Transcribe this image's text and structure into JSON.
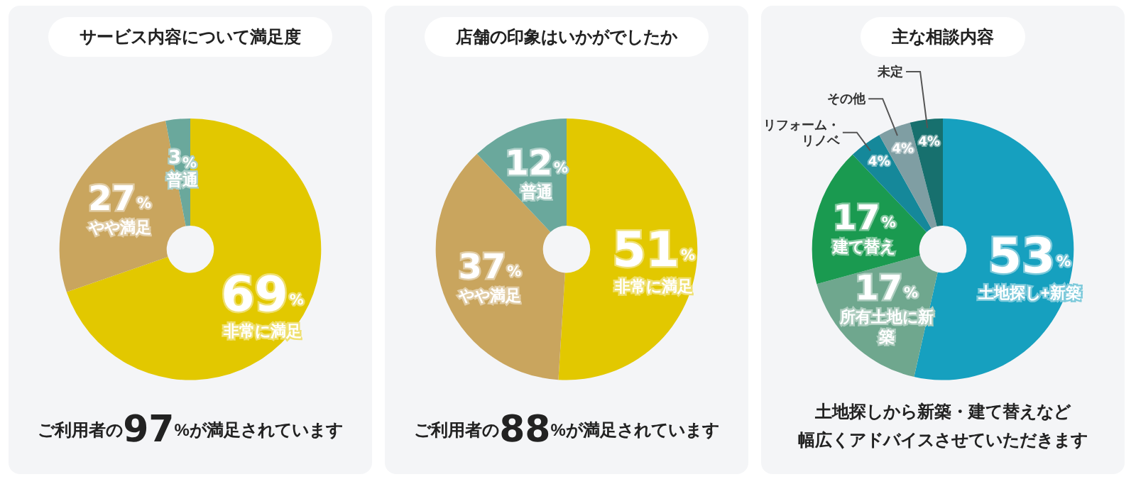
{
  "chart_data": [
    {
      "type": "donut",
      "title": "サービス内容について満足度",
      "categories": [
        "非常に満足",
        "やや満足",
        "普通"
      ],
      "values": [
        69,
        27,
        3
      ],
      "value_labels": [
        "69%",
        "27%",
        "3%"
      ],
      "colors": [
        "#e2c800",
        "#c9a55e",
        "#6aa89c"
      ],
      "legend": false,
      "annotations": [
        "ご利用者の97%が満足されています"
      ]
    },
    {
      "type": "donut",
      "title": "店舗の印象はいかがでしたか",
      "categories": [
        "非常に満足",
        "やや満足",
        "普通"
      ],
      "values": [
        51,
        37,
        12
      ],
      "value_labels": [
        "51%",
        "37%",
        "12%"
      ],
      "colors": [
        "#e2c800",
        "#c9a55e",
        "#6aa89c"
      ],
      "legend": false,
      "annotations": [
        "ご利用者の88%が満足されています"
      ]
    },
    {
      "type": "donut",
      "title": "主な相談内容",
      "categories": [
        "土地探し+新築",
        "所有土地に新築",
        "建て替え",
        "リフォーム・リノベ",
        "その他",
        "未定"
      ],
      "values": [
        53,
        17,
        17,
        4,
        4,
        4
      ],
      "value_labels": [
        "53%",
        "17%",
        "17%",
        "4%",
        "4%",
        "4%"
      ],
      "colors": [
        "#16a0bf",
        "#6fa78e",
        "#1a9a50",
        "#15889a",
        "#7f9ea3",
        "#17706e"
      ],
      "legend": false,
      "annotations": [
        "土地探しから新築・建て替えなど",
        "幅広くアドバイスさせていただきます"
      ]
    }
  ]
}
